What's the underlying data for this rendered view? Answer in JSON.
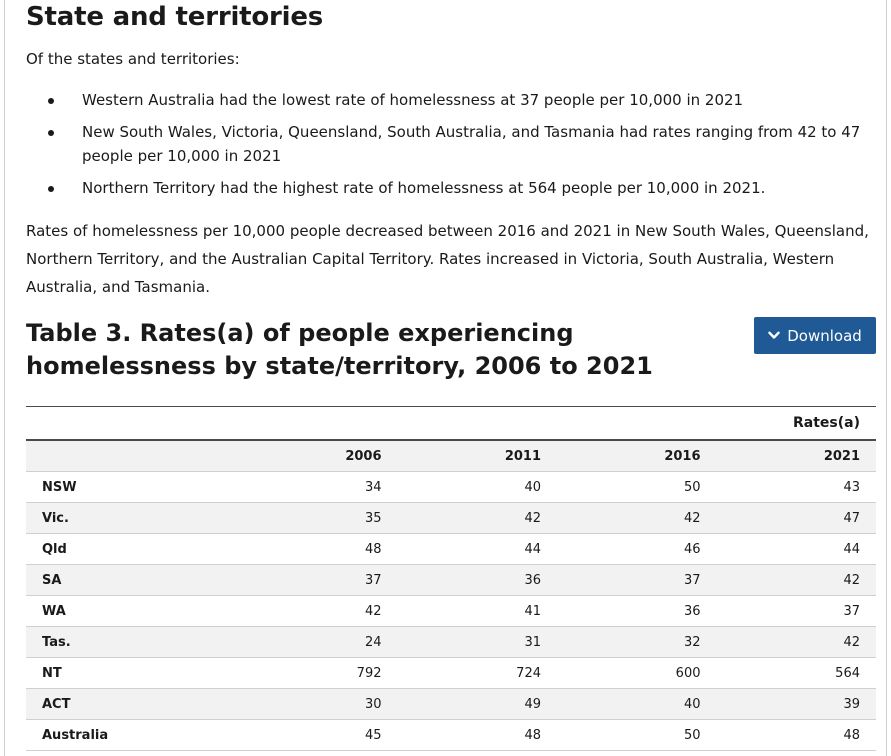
{
  "section": {
    "title": "State and territories",
    "intro": "Of the states and territories:",
    "bullets": [
      "Western Australia had the lowest rate of homelessness at 37 people per 10,000 in 2021",
      "New South Wales, Victoria, Queensland, South Australia, and Tasmania had rates ranging from 42 to 47 people per 10,000 in 2021",
      "Northern Territory had the highest rate of homelessness at 564 people per 10,000 in 2021."
    ],
    "paragraph": "Rates of homelessness per 10,000 people decreased between 2016 and 2021 in New South Wales, Queensland, Northern Territory, and the Australian Capital Territory. Rates increased in Victoria, South Australia, Western Australia, and Tasmania."
  },
  "table": {
    "title": "Table 3. Rates(a) of people experiencing homelessness by state/territory, 2006 to 2021",
    "download_label": "Download",
    "group_header": "Rates(a)",
    "stub_header": "",
    "columns": [
      "2006",
      "2011",
      "2016",
      "2021"
    ],
    "rows": [
      {
        "label": "NSW",
        "values": [
          "34",
          "40",
          "50",
          "43"
        ]
      },
      {
        "label": "Vic.",
        "values": [
          "35",
          "42",
          "42",
          "47"
        ]
      },
      {
        "label": "Qld",
        "values": [
          "48",
          "44",
          "46",
          "44"
        ]
      },
      {
        "label": "SA",
        "values": [
          "37",
          "36",
          "37",
          "42"
        ]
      },
      {
        "label": "WA",
        "values": [
          "42",
          "41",
          "36",
          "37"
        ]
      },
      {
        "label": "Tas.",
        "values": [
          "24",
          "31",
          "32",
          "42"
        ]
      },
      {
        "label": "NT",
        "values": [
          "792",
          "724",
          "600",
          "564"
        ]
      },
      {
        "label": "ACT",
        "values": [
          "30",
          "49",
          "40",
          "39"
        ]
      },
      {
        "label": "Australia",
        "values": [
          "45",
          "48",
          "50",
          "48"
        ]
      }
    ]
  },
  "colors": {
    "button_bg": "#1f5a96",
    "row_stripe": "#f2f2f2"
  },
  "icons": {
    "download": "chevron-down-icon"
  }
}
